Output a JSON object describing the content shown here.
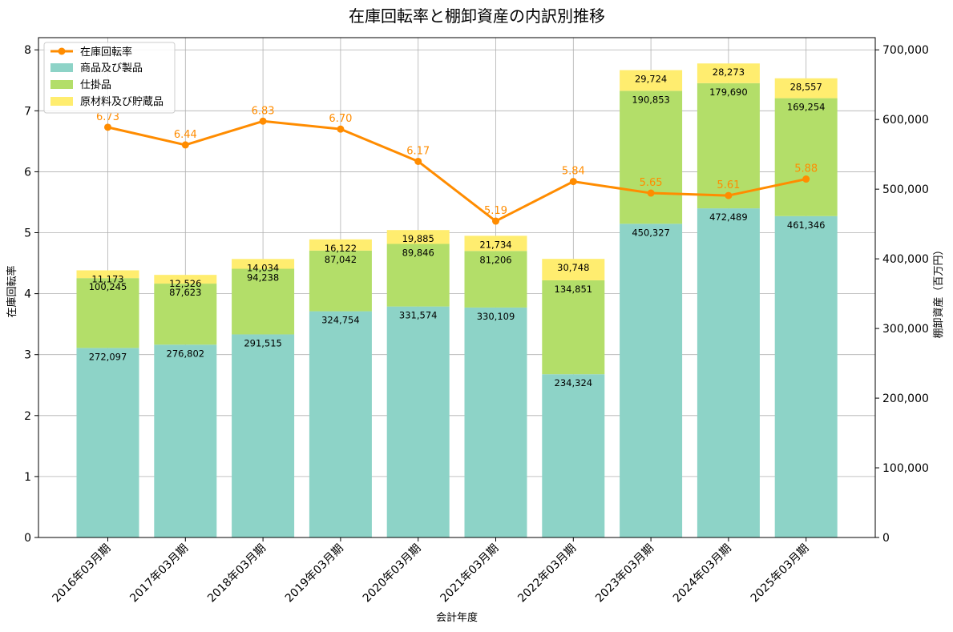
{
  "chart_data": {
    "type": "bar",
    "title": "在庫回転率と棚卸資産の内訳別推移",
    "xlabel": "会計年度",
    "ylabel_left": "在庫回転率",
    "ylabel_right": "棚卸資産（百万円）",
    "categories": [
      "2016年03月期",
      "2017年03月期",
      "2018年03月期",
      "2019年03月期",
      "2020年03月期",
      "2021年03月期",
      "2022年03月期",
      "2023年03月期",
      "2024年03月期",
      "2025年03月期"
    ],
    "ylim_left": [
      0,
      8.2
    ],
    "ylim_right": [
      0,
      717500
    ],
    "yticks_left": [
      0,
      1,
      2,
      3,
      4,
      5,
      6,
      7,
      8
    ],
    "yticks_right": [
      0,
      100000,
      200000,
      300000,
      400000,
      500000,
      600000,
      700000
    ],
    "yticks_right_labels": [
      "0",
      "100,000",
      "200,000",
      "300,000",
      "400,000",
      "500,000",
      "600,000",
      "700,000"
    ],
    "grid": true,
    "legend_position": "top-left",
    "stacked_series": [
      {
        "name": "商品及び製品",
        "color": "#8dd3c7",
        "values": [
          272097,
          276802,
          291515,
          324754,
          331574,
          330109,
          234324,
          450327,
          472489,
          461346
        ],
        "labels": [
          "272,097",
          "276,802",
          "291,515",
          "324,754",
          "331,574",
          "330,109",
          "234,324",
          "450,327",
          "472,489",
          "461,346"
        ]
      },
      {
        "name": "仕掛品",
        "color": "#b3de69",
        "values": [
          100245,
          87623,
          94238,
          87042,
          89846,
          81206,
          134851,
          190853,
          179690,
          169254
        ],
        "labels": [
          "100,245",
          "87,623",
          "94,238",
          "87,042",
          "89,846",
          "81,206",
          "134,851",
          "190,853",
          "179,690",
          "169,254"
        ]
      },
      {
        "name": "原材料及び貯蔵品",
        "color": "#ffed6f",
        "values": [
          11173,
          12526,
          14034,
          16122,
          19885,
          21734,
          30748,
          29724,
          28273,
          28557
        ],
        "labels": [
          "11,173",
          "12,526",
          "14,034",
          "16,122",
          "19,885",
          "21,734",
          "30,748",
          "29,724",
          "28,273",
          "28,557"
        ]
      }
    ],
    "line_series": {
      "name": "在庫回転率",
      "color": "#ff8c00",
      "values": [
        6.73,
        6.44,
        6.83,
        6.7,
        6.17,
        5.19,
        5.84,
        5.65,
        5.61,
        5.88
      ],
      "labels": [
        "6.73",
        "6.44",
        "6.83",
        "6.70",
        "6.17",
        "5.19",
        "5.84",
        "5.65",
        "5.61",
        "5.88"
      ]
    }
  }
}
